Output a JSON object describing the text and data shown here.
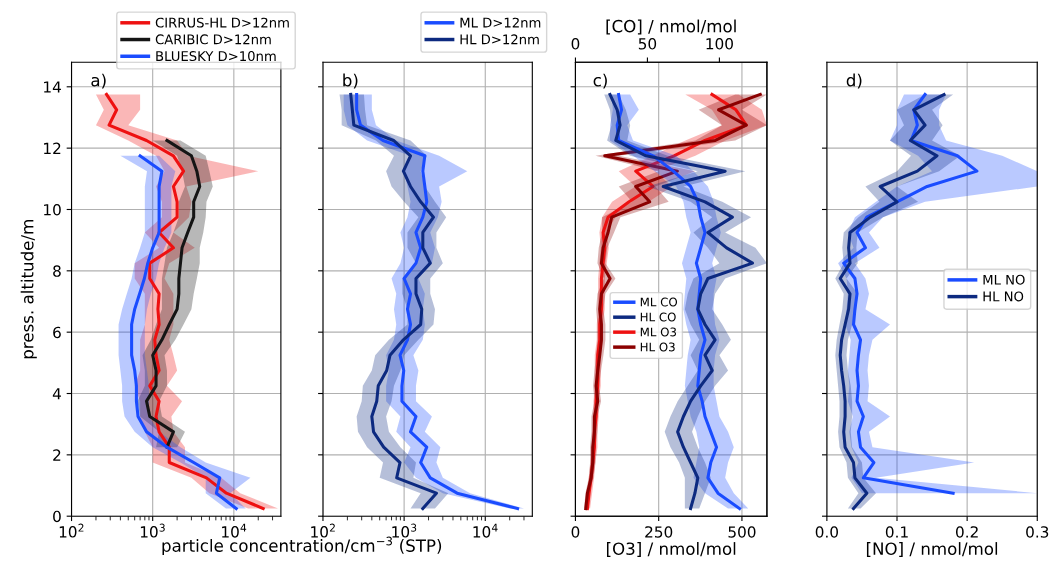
{
  "chart_data": [
    {
      "type": "line",
      "orientation": "horizontal",
      "log": "x",
      "grid": true,
      "legend": "top right",
      "annotations": [
        "a)"
      ],
      "ylabel": "press. altitude/m",
      "xlabel": "particle concentration/cm$^{−3}$ (STP)",
      "xlim": [
        100,
        38000
      ],
      "xticks": [
        {
          "value": 100,
          "label": "10$^{2}$"
        },
        {
          "value": 1000,
          "label": "10$^{3}$"
        },
        {
          "value": 10000,
          "label": "10$^{4}$"
        }
      ],
      "ylim": [
        0,
        14.8
      ],
      "yticks": [
        0,
        2,
        4,
        6,
        8,
        10,
        12,
        14
      ],
      "x": [
        0.25,
        0.75,
        1.25,
        1.75,
        2.25,
        2.75,
        3.25,
        3.75,
        4.25,
        4.75,
        5.25,
        5.75,
        6.25,
        6.75,
        7.25,
        7.75,
        8.25,
        8.75,
        9.25,
        9.75,
        10.25,
        10.75,
        11.25,
        11.75,
        12.25,
        12.75,
        13.25,
        13.75
      ],
      "series": [
        {
          "name": "CIRRUS-HL D>12nm",
          "color": "#ee1111",
          "values": [
            23000,
            8100,
            4600,
            1600,
            1600,
            1200,
            1100,
            1200,
            920,
            1200,
            1100,
            1060,
            1200,
            1160,
            1200,
            920,
            920,
            1800,
            1200,
            2000,
            2000,
            1800,
            2400,
            1800,
            840,
            290,
            360,
            270
          ],
          "lower": [
            15000,
            5000,
            3000,
            1000,
            1000,
            800,
            700,
            700,
            600,
            700,
            700,
            700,
            800,
            800,
            800,
            600,
            600,
            1200,
            800,
            1300,
            1300,
            1100,
            1400,
            1100,
            500,
            200,
            250,
            200
          ],
          "upper": [
            35000,
            12000,
            7000,
            2500,
            2500,
            1800,
            1700,
            2300,
            1500,
            2000,
            1800,
            1600,
            1800,
            1800,
            1800,
            1400,
            1600,
            3300,
            1800,
            2800,
            3000,
            2600,
            20000,
            2700,
            2000,
            500,
            700,
            700
          ]
        },
        {
          "name": "CARIBIC D>12nm",
          "color": "#151515",
          "values": [
            null,
            null,
            null,
            null,
            1500,
            1800,
            920,
            840,
            1100,
            1100,
            1000,
            1300,
            1600,
            2000,
            2100,
            2100,
            2200,
            2300,
            2700,
            3200,
            3200,
            3800,
            3500,
            3000,
            1500,
            null,
            null,
            null
          ],
          "lower": [
            null,
            null,
            null,
            null,
            1100,
            1200,
            700,
            650,
            800,
            800,
            750,
            950,
            1100,
            1300,
            1300,
            1300,
            1400,
            1500,
            1800,
            2100,
            2100,
            2500,
            2300,
            2000,
            1000,
            null,
            null,
            null
          ],
          "upper": [
            null,
            null,
            null,
            null,
            2000,
            2500,
            1300,
            1200,
            1500,
            1500,
            1400,
            1900,
            2400,
            3000,
            3200,
            3500,
            3800,
            3800,
            4200,
            4500,
            4600,
            5500,
            5000,
            4500,
            2200,
            null,
            null,
            null
          ]
        },
        {
          "name": "BLUESKY D>10nm",
          "color": "#1a4cff",
          "values": [
            10700,
            6100,
            6700,
            3200,
            1500,
            840,
            660,
            630,
            630,
            600,
            550,
            550,
            550,
            600,
            690,
            790,
            870,
            1000,
            1200,
            1200,
            1200,
            1200,
            1300,
            700,
            null,
            null,
            null,
            null
          ],
          "lower": [
            8000,
            4500,
            4500,
            2200,
            1000,
            600,
            450,
            420,
            420,
            400,
            380,
            380,
            380,
            420,
            480,
            550,
            600,
            700,
            800,
            800,
            800,
            800,
            850,
            400,
            null,
            null,
            null,
            null
          ],
          "upper": [
            14000,
            9000,
            16000,
            4500,
            2200,
            1200,
            900,
            900,
            900,
            850,
            800,
            800,
            800,
            850,
            950,
            1100,
            1200,
            1400,
            1700,
            1700,
            1700,
            1700,
            1900,
            1200,
            null,
            null,
            null,
            null
          ]
        }
      ]
    },
    {
      "type": "line",
      "orientation": "horizontal",
      "log": "x",
      "grid": true,
      "legend": "top right",
      "annotations": [
        "b)"
      ],
      "tick_labels": "x",
      "xlim": [
        100,
        38000
      ],
      "xticks": [
        {
          "value": 100,
          "label": "10$^{2}$"
        },
        {
          "value": 1000,
          "label": "10$^{3}$"
        },
        {
          "value": 10000,
          "label": "10$^{4}$"
        }
      ],
      "ylim": [
        0,
        14.8
      ],
      "yticks": [
        0,
        2,
        4,
        6,
        8,
        10,
        12,
        14
      ],
      "x": [
        0.25,
        0.75,
        1.25,
        1.75,
        2.25,
        2.75,
        3.25,
        3.75,
        4.25,
        4.75,
        5.25,
        5.75,
        6.25,
        6.75,
        7.25,
        7.75,
        8.25,
        8.75,
        9.25,
        9.75,
        10.25,
        10.75,
        11.25,
        11.75,
        12.25,
        12.75,
        13.25,
        13.75
      ],
      "series": [
        {
          "name": "ML D>12nm",
          "color": "#1a4cff",
          "values": [
            25000,
            4500,
            2100,
            1600,
            1900,
            1200,
            1400,
            940,
            940,
            990,
            890,
            1100,
            1200,
            1100,
            1200,
            1000,
            1400,
            1600,
            1400,
            1700,
            1900,
            1800,
            1700,
            1800,
            550,
            290,
            260,
            260
          ],
          "lower": [
            20000,
            3000,
            1400,
            1000,
            1200,
            800,
            900,
            600,
            600,
            650,
            600,
            750,
            800,
            750,
            800,
            700,
            900,
            1000,
            900,
            1100,
            1200,
            1100,
            1000,
            1200,
            350,
            200,
            180,
            180
          ],
          "upper": [
            30000,
            6500,
            3000,
            2500,
            2800,
            1800,
            2200,
            1400,
            1400,
            1500,
            1300,
            1700,
            1800,
            1700,
            1800,
            1500,
            2200,
            2400,
            2100,
            2600,
            2900,
            2700,
            6000,
            2700,
            800,
            450,
            400,
            400
          ]
        },
        {
          "name": "HL D>12nm",
          "color": "#0d2a80",
          "values": [
            1700,
            2500,
            810,
            890,
            560,
            420,
            400,
            460,
            480,
            610,
            670,
            980,
            1600,
            1650,
            1400,
            1400,
            2100,
            1700,
            1700,
            2300,
            1600,
            1200,
            980,
            1200,
            740,
            240,
            230,
            220
          ],
          "lower": [
            1200,
            1600,
            500,
            550,
            350,
            270,
            260,
            300,
            310,
            400,
            440,
            650,
            1100,
            1100,
            950,
            950,
            1400,
            1100,
            1100,
            1500,
            1000,
            700,
            600,
            750,
            450,
            170,
            170,
            160
          ],
          "upper": [
            2400,
            3500,
            1300,
            1400,
            900,
            650,
            600,
            700,
            750,
            900,
            1000,
            1500,
            2300,
            2400,
            2100,
            2100,
            3000,
            2500,
            2500,
            3300,
            2400,
            1800,
            1600,
            1900,
            1200,
            350,
            330,
            320
          ]
        }
      ]
    },
    {
      "type": "line",
      "orientation": "horizontal",
      "grid": true,
      "legend": "center left",
      "annotations": [
        "c)"
      ],
      "tick_labels": "x",
      "xlabel": "[O3] / nmol/mol",
      "x2label": "[CO] / nmol/mol",
      "xlim": [
        0,
        575
      ],
      "xticks": [
        0,
        250,
        500
      ],
      "x2lim": [
        0,
        133
      ],
      "x2ticks": [
        0,
        50,
        100
      ],
      "ylim": [
        0,
        14.8
      ],
      "yticks": [
        0,
        2,
        4,
        6,
        8,
        10,
        12,
        14
      ],
      "x": [
        0.25,
        0.75,
        1.25,
        1.75,
        2.25,
        2.75,
        3.25,
        3.75,
        4.25,
        4.75,
        5.25,
        5.75,
        6.25,
        6.75,
        7.25,
        7.75,
        8.25,
        8.75,
        9.25,
        9.75,
        10.25,
        10.75,
        11.25,
        11.75,
        12.25,
        12.75,
        13.25,
        13.75
      ],
      "series": [
        {
          "name": "ML CO",
          "color": "#1a4cff",
          "axis": "x2",
          "values": [
            114,
            99,
            92,
            94,
            98,
            94,
            90,
            88,
            85,
            86,
            87,
            90,
            87,
            85,
            86,
            87,
            84,
            87,
            90,
            87,
            85,
            80,
            68,
            54,
            30,
            29,
            32,
            30
          ],
          "lower": [
            106,
            90,
            82,
            84,
            86,
            84,
            80,
            78,
            76,
            77,
            78,
            80,
            77,
            75,
            76,
            77,
            74,
            77,
            80,
            77,
            75,
            70,
            55,
            40,
            24,
            24,
            26,
            25
          ],
          "upper": [
            120,
            110,
            104,
            106,
            110,
            106,
            100,
            98,
            96,
            96,
            97,
            100,
            97,
            96,
            96,
            98,
            95,
            98,
            101,
            98,
            96,
            92,
            82,
            70,
            40,
            36,
            44,
            38
          ]
        },
        {
          "name": "HL CO",
          "color": "#0d2a80",
          "axis": "x2",
          "values": [
            80,
            83,
            85,
            80,
            75,
            71,
            75,
            80,
            87,
            95,
            90,
            97,
            90,
            85,
            87,
            92,
            123,
            105,
            92,
            109,
            90,
            61,
            104,
            49,
            28,
            31,
            29,
            24
          ],
          "lower": [
            76,
            76,
            76,
            72,
            66,
            62,
            66,
            71,
            78,
            85,
            80,
            86,
            80,
            76,
            78,
            82,
            100,
            92,
            82,
            95,
            80,
            50,
            85,
            38,
            22,
            25,
            24,
            20
          ],
          "upper": [
            86,
            90,
            94,
            90,
            85,
            81,
            85,
            90,
            97,
            106,
            100,
            108,
            102,
            95,
            97,
            104,
            133,
            125,
            104,
            122,
            102,
            75,
            118,
            64,
            36,
            38,
            35,
            30
          ]
        },
        {
          "name": "ML O3",
          "color": "#ee1111",
          "values": [
            36,
            41,
            47,
            52,
            57,
            57,
            62,
            62,
            67,
            67,
            67,
            73,
            73,
            78,
            78,
            78,
            83,
            88,
            83,
            98,
            161,
            233,
            181,
            296,
            389,
            513,
            482,
            410
          ],
          "lower": [
            30,
            35,
            40,
            45,
            50,
            50,
            54,
            54,
            58,
            58,
            58,
            64,
            64,
            68,
            68,
            68,
            72,
            76,
            72,
            80,
            110,
            180,
            130,
            230,
            330,
            440,
            410,
            330
          ],
          "upper": [
            44,
            50,
            56,
            60,
            66,
            66,
            70,
            70,
            76,
            76,
            76,
            82,
            82,
            88,
            88,
            88,
            94,
            100,
            94,
            120,
            220,
            290,
            240,
            360,
            450,
            575,
            560,
            490
          ]
        },
        {
          "name": "HL O3",
          "color": "#8b0000",
          "values": [
            31,
            36,
            47,
            52,
            52,
            57,
            57,
            67,
            62,
            67,
            73,
            78,
            78,
            73,
            78,
            104,
            78,
            83,
            98,
            109,
            223,
            181,
            306,
            88,
            420,
            513,
            430,
            555
          ],
          "lower": [
            26,
            30,
            40,
            44,
            44,
            48,
            48,
            57,
            53,
            57,
            62,
            66,
            66,
            62,
            66,
            85,
            66,
            70,
            80,
            80,
            170,
            130,
            250,
            60,
            360,
            440,
            370,
            480
          ],
          "upper": [
            36,
            42,
            54,
            60,
            60,
            66,
            66,
            77,
            71,
            77,
            84,
            90,
            90,
            84,
            90,
            120,
            90,
            96,
            116,
            135,
            280,
            240,
            360,
            130,
            480,
            575,
            500,
            575
          ]
        }
      ]
    },
    {
      "type": "line",
      "orientation": "horizontal",
      "grid": true,
      "legend": "center right",
      "annotations": [
        "d)"
      ],
      "tick_labels": "x",
      "xlabel": "[NO] / nmol/mol",
      "xlim": [
        0,
        0.3
      ],
      "xticks": [
        {
          "value": 0,
          "label": "0.0"
        },
        0.1,
        0.2,
        0.3
      ],
      "ylim": [
        0,
        14.8
      ],
      "yticks": [
        0,
        2,
        4,
        6,
        8,
        10,
        12,
        14
      ],
      "x": [
        0.25,
        0.75,
        1.25,
        1.75,
        2.25,
        2.75,
        3.25,
        3.75,
        4.25,
        4.75,
        5.25,
        5.75,
        6.25,
        6.75,
        7.25,
        7.75,
        8.25,
        8.75,
        9.25,
        9.75,
        10.25,
        10.75,
        11.25,
        11.75,
        12.25,
        12.75,
        13.25,
        13.75
      ],
      "series": [
        {
          "name": "ML NO",
          "color": "#1a4cff",
          "values": [
            null,
            0.18,
            0.052,
            0.067,
            0.048,
            0.045,
            0.052,
            0.043,
            0.045,
            0.043,
            0.045,
            0.048,
            0.038,
            0.04,
            0.043,
            0.04,
            0.024,
            0.055,
            0.043,
            0.057,
            0.1,
            0.143,
            0.214,
            0.186,
            0.12,
            0.129,
            0.124,
            0.14
          ],
          "lower": [
            null,
            0.05,
            0.035,
            0.045,
            0.035,
            0.032,
            0.037,
            0.03,
            0.032,
            0.03,
            0.032,
            0.034,
            0.026,
            0.028,
            0.03,
            0.028,
            0.016,
            0.038,
            0.03,
            0.04,
            0.07,
            0.1,
            0.15,
            0.13,
            0.09,
            0.1,
            0.1,
            0.11
          ],
          "upper": [
            null,
            0.3,
            0.07,
            0.21,
            0.065,
            0.06,
            0.09,
            0.058,
            0.06,
            0.058,
            0.06,
            0.065,
            0.09,
            0.055,
            0.06,
            0.055,
            0.04,
            0.075,
            0.06,
            0.08,
            0.14,
            0.3,
            0.3,
            0.25,
            0.17,
            0.16,
            0.16,
            0.17
          ]
        },
        {
          "name": "HL NO",
          "color": "#0d2a80",
          "values": [
            0.038,
            0.057,
            0.04,
            0.038,
            0.026,
            0.024,
            0.026,
            0.026,
            0.024,
            0.021,
            0.019,
            0.021,
            0.026,
            0.031,
            0.033,
            0.019,
            0.033,
            0.031,
            0.033,
            0.062,
            0.1,
            0.076,
            0.129,
            0.157,
            0.119,
            0.14,
            0.124,
            0.167
          ],
          "lower": [
            0.03,
            0.045,
            0.03,
            0.028,
            0.018,
            0.016,
            0.018,
            0.018,
            0.016,
            0.014,
            0.012,
            0.014,
            0.018,
            0.022,
            0.024,
            0.012,
            0.024,
            0.022,
            0.024,
            0.045,
            0.075,
            0.055,
            0.1,
            0.12,
            0.09,
            0.11,
            0.1,
            0.14
          ],
          "upper": [
            0.048,
            0.07,
            0.052,
            0.05,
            0.036,
            0.034,
            0.036,
            0.036,
            0.034,
            0.03,
            0.028,
            0.03,
            0.036,
            0.042,
            0.044,
            0.028,
            0.044,
            0.042,
            0.044,
            0.08,
            0.13,
            0.1,
            0.16,
            0.19,
            0.15,
            0.165,
            0.15,
            0.18
          ]
        }
      ]
    }
  ]
}
